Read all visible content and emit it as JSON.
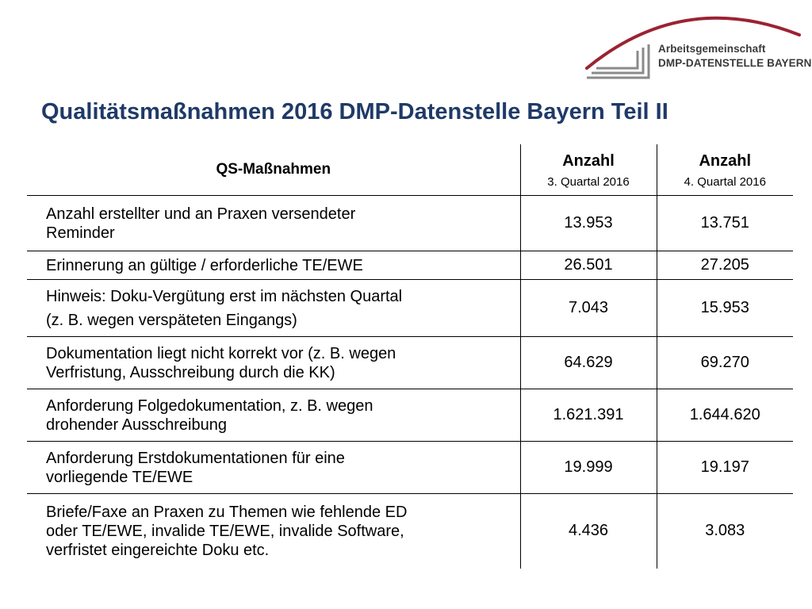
{
  "logo": {
    "line1": "Arbeitsgemeinschaft",
    "line2": "DMP-DATENSTELLE BAYERN",
    "arc_color": "#9b2332",
    "bracket_color": "#8a8a8a"
  },
  "title": "Qualitätsmaßnahmen 2016 DMP-Datenstelle Bayern Teil II",
  "table": {
    "header": {
      "label": "QS-Maßnahmen",
      "col1_main": "Anzahl",
      "col1_sub": "3. Quartal 2016",
      "col2_main": "Anzahl",
      "col2_sub": "4. Quartal 2016"
    },
    "rows": [
      {
        "label_lines": [
          "Anzahl erstellter und an Praxen versendeter",
          "Reminder"
        ],
        "q3": "13.953",
        "q4": "13.751"
      },
      {
        "label_lines": [
          "Erinnerung an gültige / erforderliche TE/EWE"
        ],
        "q3": "26.501",
        "q4": "27.205"
      },
      {
        "label_lines": [
          "Hinweis: Doku-Vergütung erst im nächsten Quartal",
          "(z. B. wegen verspäteten Eingangs)"
        ],
        "q3": "7.043",
        "q4": "15.953"
      },
      {
        "label_lines": [
          "Dokumentation liegt nicht korrekt vor (z. B. wegen",
          "Verfristung, Ausschreibung durch die KK)"
        ],
        "q3": "64.629",
        "q4": "69.270"
      },
      {
        "label_lines": [
          "Anforderung Folgedokumentation, z. B. wegen",
          "drohender Ausschreibung"
        ],
        "q3": "1.621.391",
        "q4": "1.644.620"
      },
      {
        "label_lines": [
          "Anforderung Erstdokumentationen für eine",
          "vorliegende TE/EWE"
        ],
        "q3": "19.999",
        "q4": "19.197"
      },
      {
        "label_lines": [
          "Briefe/Faxe an Praxen zu Themen wie fehlende ED",
          "oder TE/EWE, invalide TE/EWE, invalide Software,",
          "verfristet eingereichte Doku etc."
        ],
        "q3": "4.436",
        "q4": "3.083"
      }
    ]
  },
  "colors": {
    "title": "#1f3a68",
    "rule": "#000000",
    "background": "#ffffff"
  }
}
